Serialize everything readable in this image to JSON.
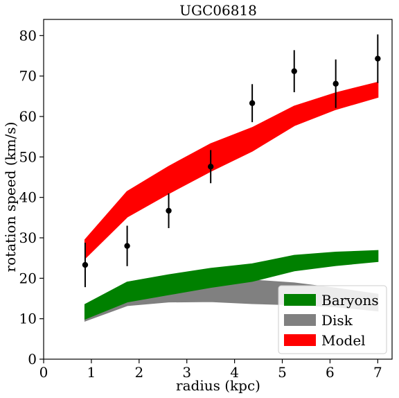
{
  "chart_data": {
    "type": "area",
    "title": "UGC06818",
    "xlabel": "radius (kpc)",
    "ylabel": "rotation speed (km/s)",
    "xlim": [
      0,
      7.3
    ],
    "ylim": [
      0,
      84
    ],
    "xticks": [
      0,
      1,
      2,
      3,
      4,
      5,
      6,
      7
    ],
    "yticks": [
      0,
      10,
      20,
      30,
      40,
      50,
      60,
      70,
      80
    ],
    "grid": false,
    "legend": "lower-right",
    "x": [
      0.87,
      1.75,
      2.62,
      3.5,
      4.37,
      5.25,
      6.12,
      7.0
    ],
    "bands": [
      {
        "name": "Disk",
        "color": "#808080",
        "lower": [
          9.5,
          13.3,
          14.2,
          14.3,
          13.8,
          13.5,
          13.0,
          12.0
        ],
        "upper": [
          13.0,
          18.8,
          19.8,
          20.0,
          19.5,
          18.8,
          17.5,
          16.0
        ]
      },
      {
        "name": "Baryons",
        "color": "#008000",
        "lower": [
          10.0,
          14.2,
          16.0,
          17.8,
          19.3,
          21.9,
          23.2,
          24.2
        ],
        "upper": [
          13.5,
          19.0,
          20.8,
          22.4,
          23.5,
          25.6,
          26.4,
          26.8
        ]
      },
      {
        "name": "Model",
        "color": "#ff0000",
        "lower": [
          25.0,
          35.2,
          41.0,
          46.5,
          51.5,
          57.8,
          61.8,
          64.8
        ],
        "upper": [
          29.5,
          41.4,
          47.6,
          53.2,
          57.2,
          62.5,
          65.8,
          68.4
        ]
      }
    ],
    "observed": {
      "color": "#000000",
      "points": [
        {
          "x": 0.87,
          "y": 23.3,
          "err": 5.5
        },
        {
          "x": 1.75,
          "y": 28.0,
          "err": 5.0
        },
        {
          "x": 2.62,
          "y": 36.7,
          "err": 4.3
        },
        {
          "x": 3.5,
          "y": 47.6,
          "err": 4.1
        },
        {
          "x": 4.37,
          "y": 63.3,
          "err": 4.7
        },
        {
          "x": 5.25,
          "y": 71.2,
          "err": 5.2
        },
        {
          "x": 6.12,
          "y": 68.1,
          "err": 6.0
        },
        {
          "x": 7.0,
          "y": 74.3,
          "err": 6.0
        }
      ]
    },
    "legend_entries": [
      {
        "label": "Baryons",
        "color": "#008000"
      },
      {
        "label": "Disk",
        "color": "#808080"
      },
      {
        "label": "Model",
        "color": "#ff0000"
      }
    ]
  }
}
